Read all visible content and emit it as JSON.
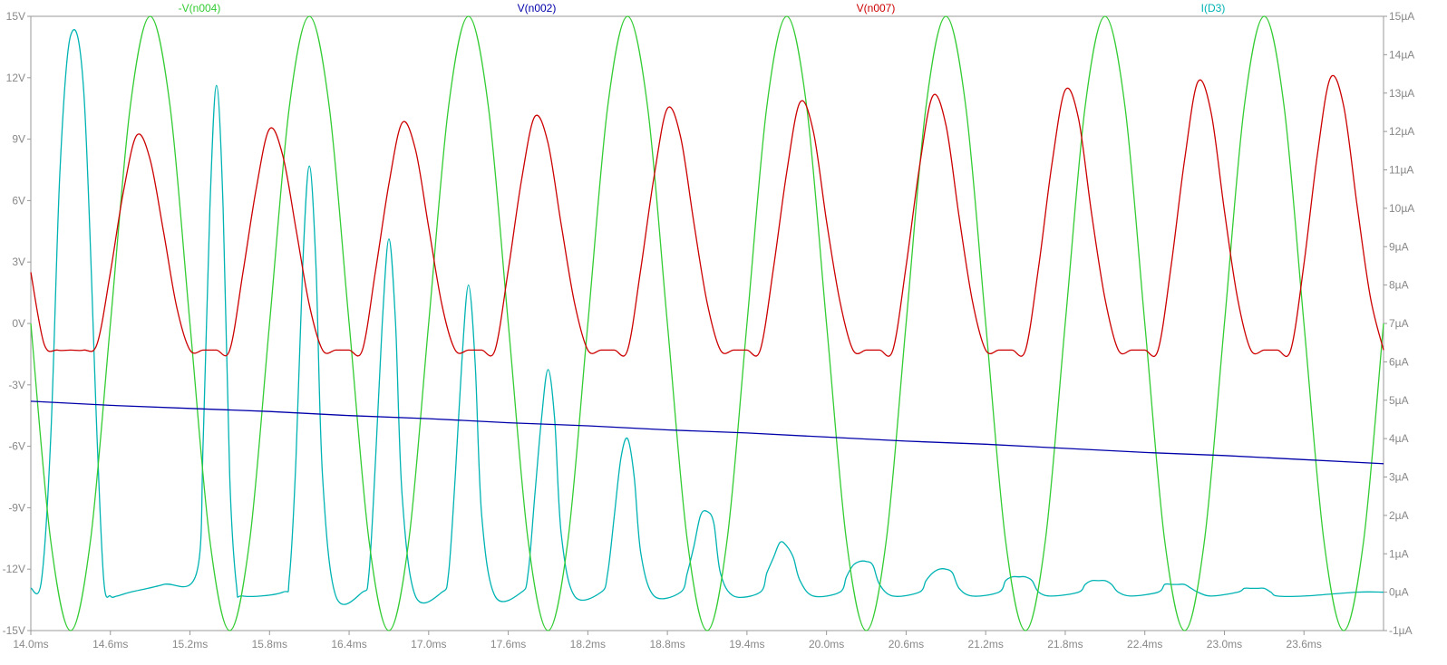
{
  "chart_data": {
    "type": "line",
    "title": "",
    "xlabel": "",
    "ylabel": "",
    "y2label": "",
    "grid": false,
    "legend_placement": "top",
    "x_range_ms": [
      14.0,
      24.2
    ],
    "xlim": [
      14.0,
      24.2
    ],
    "ylim": [
      -15,
      15
    ],
    "y2lim": [
      -1,
      15
    ],
    "x_ticks": [
      "14.0ms",
      "14.6ms",
      "15.2ms",
      "15.8ms",
      "16.4ms",
      "17.0ms",
      "17.6ms",
      "18.2ms",
      "18.8ms",
      "19.4ms",
      "20.0ms",
      "20.6ms",
      "21.2ms",
      "21.8ms",
      "22.4ms",
      "23.0ms",
      "23.6ms"
    ],
    "x_tick_values": [
      14.0,
      14.6,
      15.2,
      15.8,
      16.4,
      17.0,
      17.6,
      18.2,
      18.8,
      19.4,
      20.0,
      20.6,
      21.2,
      21.8,
      22.4,
      23.0,
      23.6
    ],
    "y_ticks": [
      "15V",
      "12V",
      "9V",
      "6V",
      "3V",
      "0V",
      "-3V",
      "-6V",
      "-9V",
      "-12V",
      "-15V"
    ],
    "y_tick_values": [
      15,
      12,
      9,
      6,
      3,
      0,
      -3,
      -6,
      -9,
      -12,
      -15
    ],
    "y2_ticks": [
      "15µA",
      "14µA",
      "13µA",
      "12µA",
      "11µA",
      "10µA",
      "9µA",
      "8µA",
      "7µA",
      "6µA",
      "5µA",
      "4µA",
      "3µA",
      "2µA",
      "1µA",
      "0µA",
      "-1µA"
    ],
    "y2_tick_values": [
      15,
      14,
      13,
      12,
      11,
      10,
      9,
      8,
      7,
      6,
      5,
      4,
      3,
      2,
      1,
      0,
      -1
    ],
    "series": [
      {
        "name": "-V(n004)",
        "color": "#33cc33",
        "axis": "left",
        "x": [
          14.0,
          14.15,
          14.3,
          14.45,
          14.6,
          14.75,
          14.9,
          15.05,
          15.2,
          15.35,
          15.5,
          15.65,
          15.8,
          15.95,
          16.1,
          16.25,
          16.4,
          16.55,
          16.7,
          16.85,
          17.0,
          17.15,
          17.3,
          17.45,
          17.6,
          17.75,
          17.9,
          18.05,
          18.2,
          18.35,
          18.5,
          18.65,
          18.8,
          18.95,
          19.1,
          19.25,
          19.4,
          19.55,
          19.7,
          19.85,
          20.0,
          20.15,
          20.3,
          20.45,
          20.6,
          20.75,
          20.9,
          21.05,
          21.2,
          21.35,
          21.5,
          21.65,
          21.8,
          21.95,
          22.1,
          22.25,
          22.4,
          22.55,
          22.7,
          22.85,
          23.0,
          23.15,
          23.3,
          23.45,
          23.6,
          23.75,
          23.9,
          24.05,
          24.2
        ],
        "y": [
          0.0,
          -10.6,
          -15.0,
          -10.6,
          0.0,
          10.6,
          15.0,
          10.6,
          0.0,
          -10.6,
          -15.0,
          -10.6,
          0.0,
          10.6,
          15.0,
          10.6,
          0.0,
          -10.6,
          -15.0,
          -10.6,
          0.0,
          10.6,
          15.0,
          10.6,
          0.0,
          -10.6,
          -15.0,
          -10.6,
          0.0,
          10.6,
          15.0,
          10.6,
          0.0,
          -10.6,
          -15.0,
          -10.6,
          0.0,
          10.6,
          15.0,
          10.6,
          0.0,
          -10.6,
          -15.0,
          -10.6,
          0.0,
          10.6,
          15.0,
          10.6,
          0.0,
          -10.6,
          -15.0,
          -10.6,
          0.0,
          10.6,
          15.0,
          10.6,
          0.0,
          -10.6,
          -15.0,
          -10.6,
          0.0,
          10.6,
          15.0,
          10.6,
          0.0,
          -10.6,
          -15.0,
          -10.6,
          0.0
        ]
      },
      {
        "name": "V(n002)",
        "color": "#0000aa",
        "axis": "left",
        "x": [
          14.0,
          14.6,
          15.2,
          15.8,
          16.4,
          17.0,
          17.6,
          18.2,
          18.8,
          19.4,
          20.0,
          20.6,
          21.2,
          21.8,
          22.4,
          23.0,
          23.6,
          24.2
        ],
        "y": [
          -3.8,
          -4.0,
          -4.15,
          -4.3,
          -4.5,
          -4.65,
          -4.85,
          -5.0,
          -5.2,
          -5.35,
          -5.55,
          -5.75,
          -5.9,
          -6.1,
          -6.3,
          -6.45,
          -6.65,
          -6.85
        ]
      },
      {
        "name": "V(n007)",
        "color": "#cc0000",
        "axis": "left",
        "x": [
          14.0,
          14.1,
          14.2,
          14.3,
          14.4,
          14.5,
          14.6,
          14.7,
          14.8,
          14.9,
          15.0,
          15.1,
          15.2,
          15.3,
          15.4,
          15.5,
          15.6,
          15.7,
          15.8,
          15.9,
          16.0,
          16.1,
          16.2,
          16.3,
          16.4,
          16.5,
          16.6,
          16.7,
          16.8,
          16.9,
          17.0,
          17.1,
          17.2,
          17.3,
          17.4,
          17.5,
          17.6,
          17.7,
          17.8,
          17.9,
          18.0,
          18.1,
          18.2,
          18.3,
          18.4,
          18.5,
          18.6,
          18.7,
          18.8,
          18.9,
          19.0,
          19.1,
          19.2,
          19.3,
          19.4,
          19.5,
          19.6,
          19.7,
          19.8,
          19.9,
          20.0,
          20.1,
          20.2,
          20.3,
          20.4,
          20.5,
          20.6,
          20.7,
          20.8,
          20.9,
          21.0,
          21.1,
          21.2,
          21.3,
          21.4,
          21.5,
          21.6,
          21.7,
          21.8,
          21.9,
          22.0,
          22.1,
          22.2,
          22.3,
          22.4,
          22.5,
          22.6,
          22.7,
          22.8,
          22.9,
          23.0,
          23.1,
          23.2,
          23.3,
          23.4,
          23.5,
          23.6,
          23.7,
          23.8,
          23.9,
          24.0,
          24.1,
          24.2
        ],
        "y": [
          2.5,
          -1.0,
          -1.3,
          -1.3,
          -1.3,
          -1.0,
          2.5,
          6.5,
          9.2,
          8.0,
          4.5,
          0.8,
          -1.3,
          -1.3,
          -1.3,
          -1.3,
          2.5,
          6.6,
          9.5,
          8.2,
          4.6,
          0.9,
          -1.3,
          -1.3,
          -1.3,
          -1.3,
          2.6,
          6.8,
          9.8,
          8.5,
          4.7,
          0.9,
          -1.3,
          -1.3,
          -1.3,
          -1.3,
          2.6,
          7.0,
          10.1,
          8.8,
          4.8,
          1.0,
          -1.3,
          -1.3,
          -1.3,
          -1.3,
          2.7,
          7.2,
          10.5,
          9.1,
          4.9,
          1.0,
          -1.3,
          -1.3,
          -1.3,
          -1.3,
          2.7,
          7.4,
          10.8,
          9.4,
          5.0,
          1.1,
          -1.3,
          -1.3,
          -1.3,
          -1.3,
          2.8,
          7.6,
          11.1,
          9.7,
          5.2,
          1.1,
          -1.3,
          -1.3,
          -1.3,
          -1.3,
          2.8,
          7.8,
          11.4,
          10.0,
          5.3,
          1.2,
          -1.3,
          -1.3,
          -1.3,
          -1.3,
          2.9,
          8.0,
          11.8,
          10.3,
          5.5,
          1.2,
          -1.3,
          -1.3,
          -1.3,
          -1.3,
          2.9,
          8.2,
          12.0,
          10.6,
          5.8,
          1.3,
          -1.3
        ]
      },
      {
        "name": "I(D3)",
        "color": "#00b3b3",
        "axis": "right",
        "x": [
          14.0,
          14.08,
          14.15,
          14.22,
          14.3,
          14.4,
          14.5,
          14.55,
          14.6,
          14.65,
          14.75,
          15.0,
          15.25,
          15.3,
          15.35,
          15.4,
          15.45,
          15.5,
          15.55,
          15.6,
          15.9,
          15.95,
          16.0,
          16.05,
          16.1,
          16.15,
          16.2,
          16.3,
          16.5,
          16.55,
          16.6,
          16.65,
          16.7,
          16.75,
          16.8,
          16.9,
          17.1,
          17.15,
          17.2,
          17.25,
          17.3,
          17.35,
          17.4,
          17.5,
          17.7,
          17.75,
          17.8,
          17.85,
          17.9,
          17.95,
          18.0,
          18.1,
          18.3,
          18.35,
          18.4,
          18.45,
          18.5,
          18.55,
          18.6,
          18.7,
          18.9,
          18.95,
          19.0,
          19.05,
          19.1,
          19.15,
          19.2,
          19.3,
          19.5,
          19.55,
          19.6,
          19.65,
          19.7,
          19.75,
          19.8,
          19.9,
          20.1,
          20.15,
          20.2,
          20.25,
          20.3,
          20.35,
          20.4,
          20.5,
          20.7,
          20.75,
          20.8,
          20.85,
          20.9,
          20.95,
          21.0,
          21.1,
          21.3,
          21.35,
          21.4,
          21.45,
          21.5,
          21.55,
          21.6,
          21.7,
          21.9,
          21.95,
          22.0,
          22.05,
          22.1,
          22.15,
          22.2,
          22.3,
          22.5,
          22.55,
          22.6,
          22.65,
          22.7,
          22.75,
          22.8,
          22.9,
          23.1,
          23.15,
          23.2,
          23.25,
          23.3,
          23.35,
          23.4,
          23.6,
          24.0,
          24.2
        ],
        "y": [
          0.1,
          0.3,
          4.0,
          11.0,
          14.5,
          13.0,
          4.0,
          0.3,
          -0.1,
          -0.1,
          0.0,
          0.2,
          0.5,
          4.0,
          10.0,
          13.2,
          10.0,
          3.0,
          0.2,
          -0.1,
          0.0,
          0.4,
          3.5,
          8.5,
          11.1,
          8.5,
          3.0,
          -0.1,
          0.0,
          0.5,
          3.5,
          7.0,
          9.2,
          7.0,
          2.5,
          -0.1,
          0.0,
          0.5,
          3.0,
          6.0,
          8.0,
          6.0,
          2.0,
          -0.1,
          0.0,
          0.5,
          2.5,
          4.5,
          5.8,
          4.5,
          1.5,
          -0.1,
          0.0,
          0.5,
          2.0,
          3.5,
          4.0,
          3.0,
          1.0,
          -0.1,
          0.0,
          0.5,
          1.2,
          2.0,
          2.1,
          1.8,
          0.5,
          -0.1,
          0.0,
          0.5,
          0.9,
          1.3,
          1.2,
          0.9,
          0.3,
          -0.1,
          0.0,
          0.4,
          0.7,
          0.8,
          0.8,
          0.7,
          0.2,
          -0.1,
          0.0,
          0.3,
          0.5,
          0.6,
          0.6,
          0.5,
          0.1,
          -0.1,
          0.0,
          0.3,
          0.4,
          0.4,
          0.4,
          0.3,
          0.0,
          -0.1,
          0.0,
          0.2,
          0.3,
          0.3,
          0.3,
          0.2,
          0.0,
          -0.1,
          0.0,
          0.2,
          0.2,
          0.2,
          0.2,
          0.1,
          0.0,
          -0.1,
          0.0,
          0.1,
          0.1,
          0.1,
          0.1,
          0.0,
          -0.1,
          -0.1,
          0.0,
          0.0
        ]
      }
    ]
  }
}
